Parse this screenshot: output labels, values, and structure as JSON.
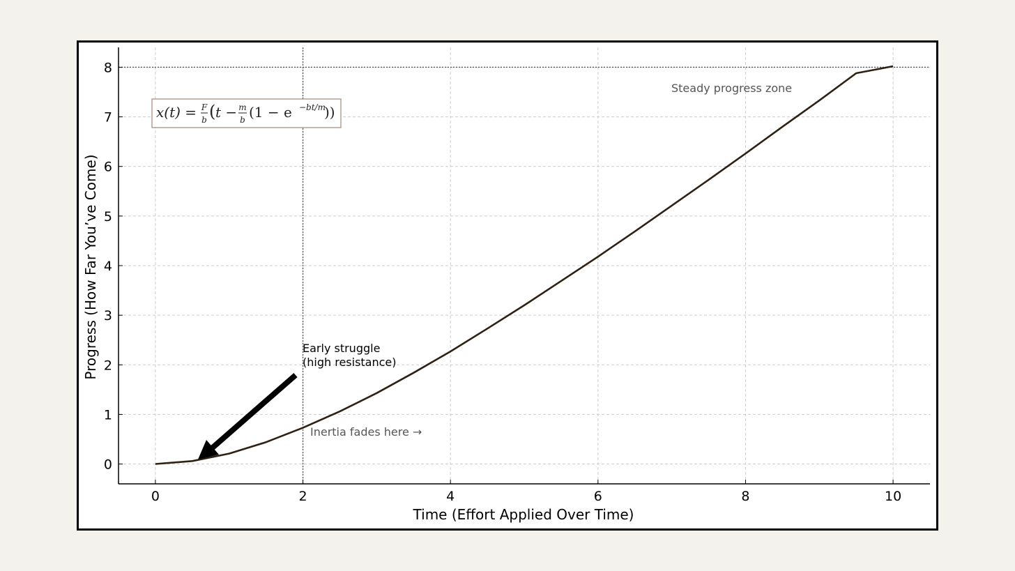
{
  "chart_data": {
    "type": "line",
    "xlabel": "Time (Effort Applied Over Time)",
    "ylabel": "Progress (How Far You’ve Come)",
    "xlim": [
      -0.5,
      10.5
    ],
    "ylim": [
      -0.4,
      8.4
    ],
    "xticks": [
      0,
      2,
      4,
      6,
      8,
      10
    ],
    "yticks": [
      0,
      1,
      2,
      3,
      4,
      5,
      6,
      7,
      8
    ],
    "grid": true,
    "series": [
      {
        "color": "#2e2114",
        "x": [
          0,
          0.5,
          1,
          1.5,
          2,
          2.5,
          3,
          3.5,
          4,
          4.5,
          5,
          5.5,
          6,
          6.5,
          7,
          7.5,
          8,
          8.5,
          9,
          9.5,
          10
        ],
        "y": [
          0,
          0.06,
          0.21,
          0.44,
          0.73,
          1.06,
          1.43,
          1.84,
          2.27,
          2.73,
          3.2,
          3.69,
          4.18,
          4.69,
          5.21,
          5.73,
          6.26,
          6.8,
          7.33,
          7.88,
          8.02
        ]
      }
    ],
    "reference_lines": [
      {
        "orientation": "horizontal",
        "value": 8,
        "style": "dotted"
      },
      {
        "orientation": "vertical",
        "value": 2,
        "style": "dotted"
      }
    ],
    "formula": {
      "lhs": "x(t) =",
      "frac1_num": "F",
      "frac1_den": "b",
      "t": "t −",
      "frac2_num": "m",
      "frac2_den": "b",
      "inner": "(1 − e",
      "exp": "−bt/m",
      "close": "))"
    },
    "annotations": {
      "early_line1": "Early struggle",
      "early_line2": "(high resistance)",
      "inertia": "Inertia fades here →",
      "steady": "Steady progress zone"
    },
    "colors": {
      "curve": "#2e2114",
      "arrow": "#000000",
      "formula_border": "#a08878"
    }
  }
}
